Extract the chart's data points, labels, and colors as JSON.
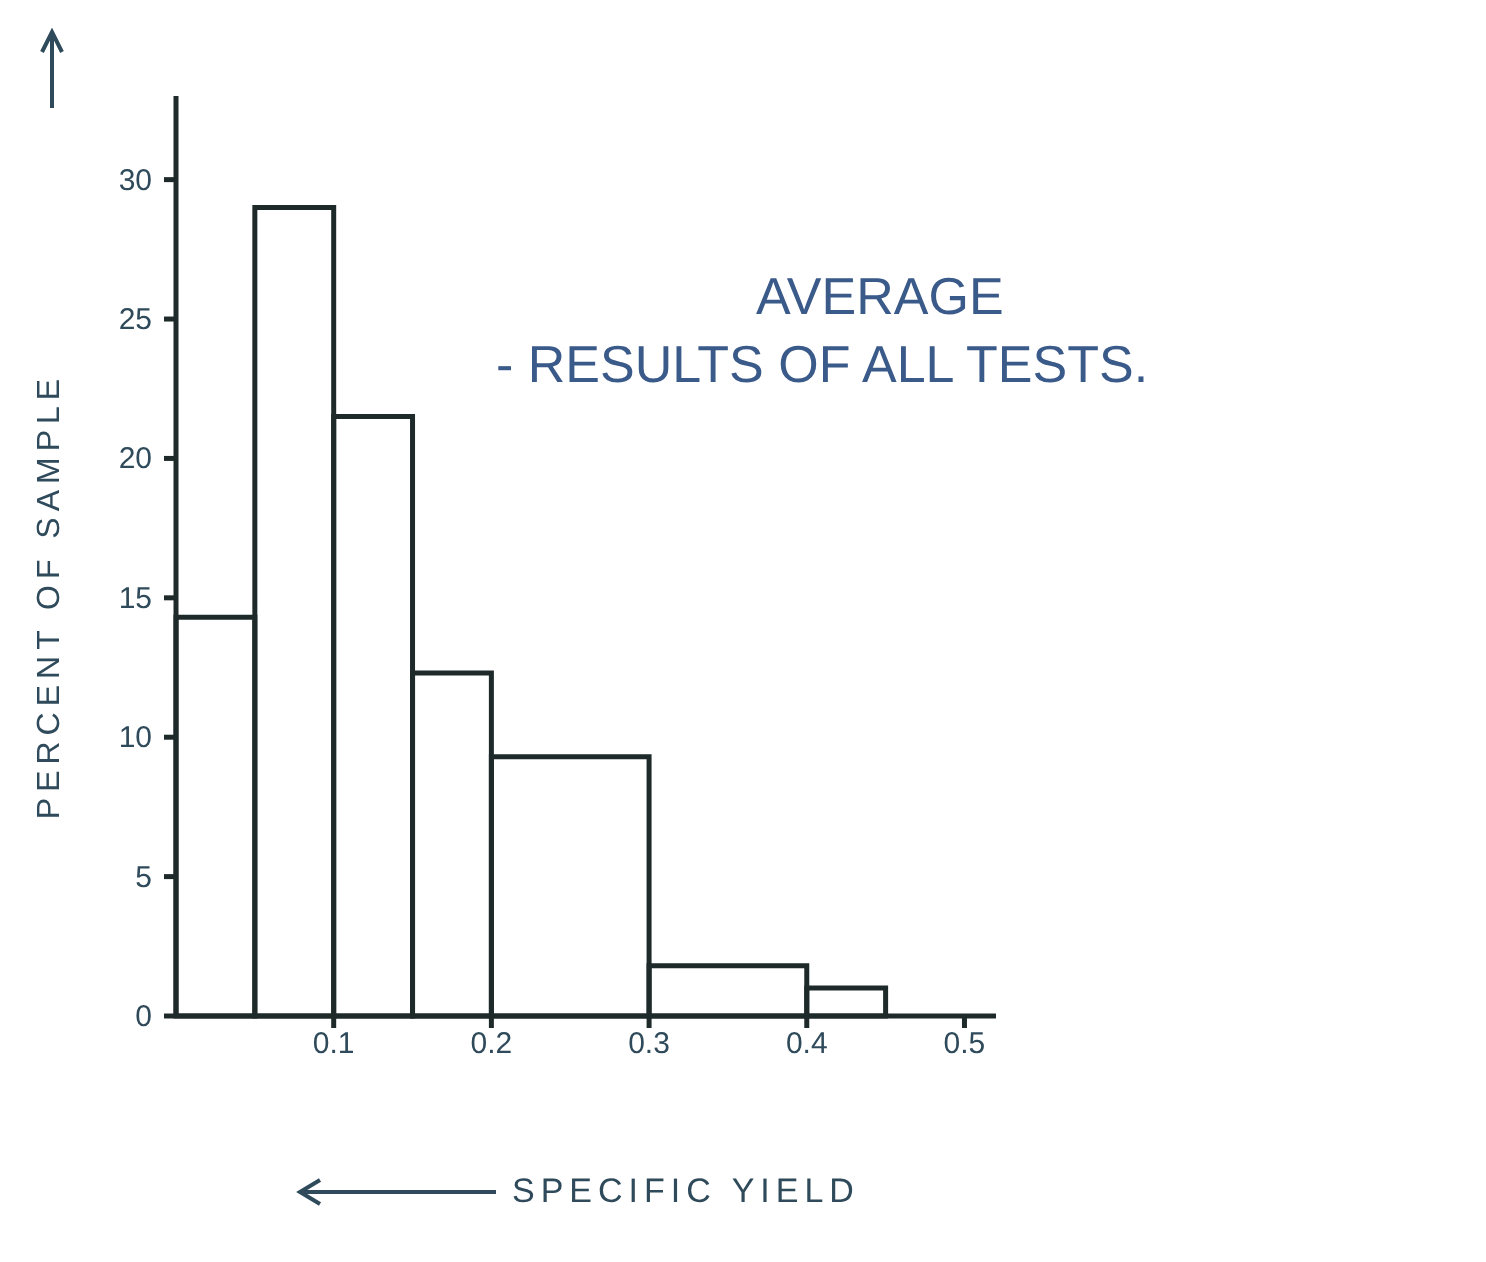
{
  "chart_data": {
    "type": "histogram",
    "xlabel": "SPECIFIC YIELD",
    "ylabel": "PERCENT OF SAMPLE",
    "annotations": [
      "AVERAGE",
      "- RESULTS OF ALL TESTS."
    ],
    "bins": [
      0,
      0.05,
      0.1,
      0.15,
      0.2,
      0.3,
      0.4,
      0.45
    ],
    "values": [
      14.3,
      29,
      21.5,
      12.3,
      9.3,
      1.8,
      1
    ],
    "color": "#1e2a2a",
    "xlim": [
      0,
      0.52
    ],
    "xticks": [
      0.1,
      0.2,
      0.3,
      0.4,
      0.5
    ],
    "ylim": [
      0,
      33
    ],
    "yticks": [
      0,
      5,
      10,
      15,
      20,
      25,
      30
    ],
    "grid": false
  }
}
